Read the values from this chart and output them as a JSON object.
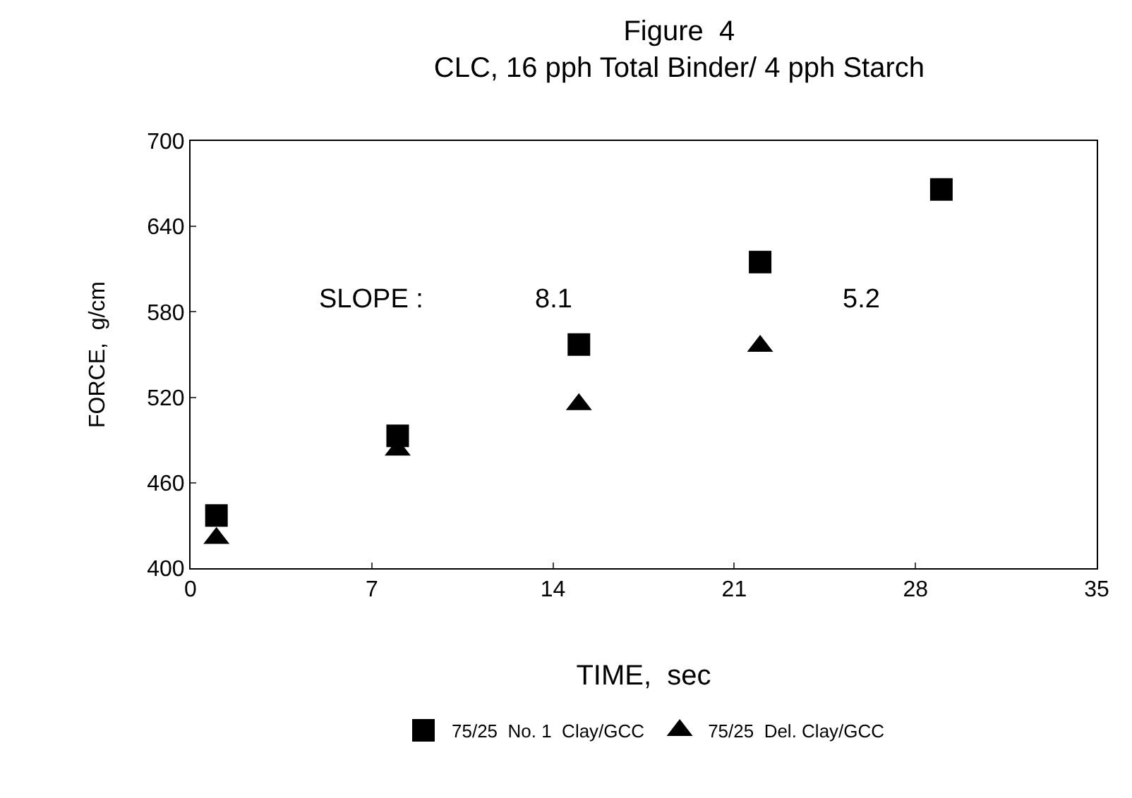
{
  "chart_data": {
    "type": "scatter",
    "title": "Figure  4",
    "subtitle": "CLC, 16 pph Total Binder/ 4 pph Starch",
    "xlabel": "TIME,  sec",
    "ylabel": "FORCE,  g/cm",
    "x": [
      1,
      8,
      15,
      22,
      29
    ],
    "series": [
      {
        "name": "75/25  No. 1  Clay/GCC",
        "color": "#000000",
        "marker": "square",
        "values": [
          437,
          493,
          557,
          615,
          666
        ]
      },
      {
        "name": "75/25  Del. Clay/GCC",
        "color": "#000000",
        "marker": "triangle",
        "values": [
          421,
          483,
          515,
          556,
          null
        ]
      }
    ],
    "xlim": [
      0,
      35
    ],
    "xticks": [
      0,
      7,
      14,
      21,
      28,
      35
    ],
    "ylim": [
      400,
      700
    ],
    "yticks": [
      400,
      460,
      520,
      580,
      640,
      700
    ],
    "annotations": [
      "SLOPE :",
      "8.1",
      "5.2"
    ],
    "grid": false,
    "legend": "bottom"
  }
}
